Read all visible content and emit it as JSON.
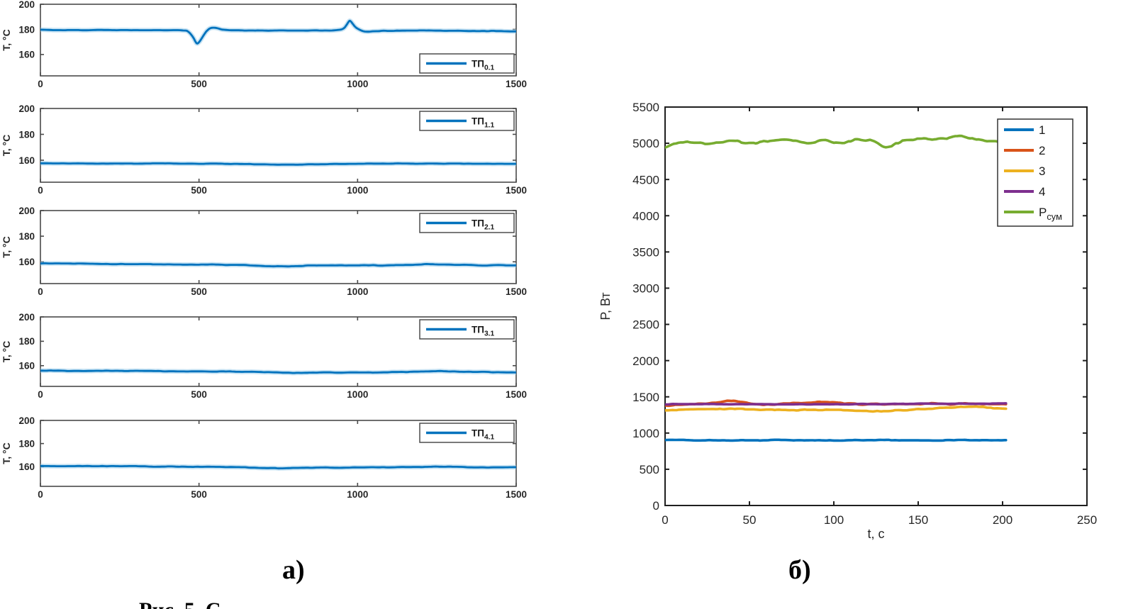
{
  "page": {
    "background": "#ffffff"
  },
  "captions": {
    "a": "а)",
    "b": "б)",
    "figure_fragment": "Рис. 5. С"
  },
  "colors": {
    "series_blue": "#0072BD",
    "series_orange": "#D95319",
    "series_yellow": "#EDB120",
    "series_purple": "#7E2F8E",
    "series_green": "#77AC30",
    "halo_blue": "#8EC6E8",
    "axis_left": "#4a4a4a",
    "axis_right": "#1f1f1f",
    "tick_label": "#262626"
  },
  "chart_data": [
    {
      "id": "a1",
      "panel": "a",
      "type": "line",
      "title": "",
      "xlabel": "",
      "ylabel": "T, °C",
      "xlim": [
        0,
        1500
      ],
      "ylim": [
        143,
        200
      ],
      "xticks": [
        0,
        500,
        1000,
        1500
      ],
      "yticks": [
        160,
        180,
        200
      ],
      "grid": false,
      "noise_wavelength": 45,
      "legend": {
        "position": "bottom-right",
        "entries": [
          {
            "label": "ТП",
            "sub": "0.1",
            "color": "#0072BD"
          }
        ]
      },
      "series": [
        {
          "name": "TP0.1",
          "color": "#0072BD",
          "halo": "#8EC6E8",
          "noise": 0.3,
          "points": [
            [
              0,
              179.6
            ],
            [
              100,
              179.5
            ],
            [
              200,
              179.4
            ],
            [
              300,
              179.4
            ],
            [
              400,
              179.4
            ],
            [
              450,
              179.3
            ],
            [
              465,
              178.5
            ],
            [
              480,
              174.5
            ],
            [
              492,
              169.2
            ],
            [
              500,
              170.0
            ],
            [
              510,
              173.5
            ],
            [
              522,
              178.0
            ],
            [
              535,
              180.8
            ],
            [
              548,
              181.2
            ],
            [
              562,
              180.6
            ],
            [
              580,
              179.6
            ],
            [
              620,
              179.1
            ],
            [
              700,
              179.0
            ],
            [
              800,
              179.0
            ],
            [
              900,
              179.1
            ],
            [
              935,
              179.3
            ],
            [
              955,
              180.5
            ],
            [
              968,
              184.5
            ],
            [
              975,
              186.7
            ],
            [
              983,
              185.0
            ],
            [
              995,
              181.5
            ],
            [
              1010,
              179.3
            ],
            [
              1030,
              178.4
            ],
            [
              1060,
              178.6
            ],
            [
              1150,
              179.0
            ],
            [
              1300,
              178.9
            ],
            [
              1400,
              178.7
            ],
            [
              1500,
              178.6
            ]
          ]
        }
      ]
    },
    {
      "id": "a2",
      "panel": "a",
      "type": "line",
      "title": "",
      "xlabel": "",
      "ylabel": "T, °C",
      "xlim": [
        0,
        1500
      ],
      "ylim": [
        143,
        200
      ],
      "xticks": [
        0,
        500,
        1000,
        1500
      ],
      "yticks": [
        160,
        180,
        200
      ],
      "grid": false,
      "noise_wavelength": 45,
      "legend": {
        "position": "top-right",
        "entries": [
          {
            "label": "ТП",
            "sub": "1.1",
            "color": "#0072BD"
          }
        ]
      },
      "series": [
        {
          "name": "TP1.1",
          "color": "#0072BD",
          "halo": "#8EC6E8",
          "noise": 0.25,
          "points": [
            [
              0,
              157.6
            ],
            [
              200,
              157.5
            ],
            [
              400,
              157.4
            ],
            [
              600,
              157.3
            ],
            [
              680,
              156.9
            ],
            [
              760,
              156.5
            ],
            [
              840,
              156.8
            ],
            [
              950,
              157.1
            ],
            [
              1100,
              157.3
            ],
            [
              1250,
              157.5
            ],
            [
              1400,
              157.3
            ],
            [
              1500,
              157.2
            ]
          ]
        }
      ]
    },
    {
      "id": "a3",
      "panel": "a",
      "type": "line",
      "title": "",
      "xlabel": "",
      "ylabel": "T, °C",
      "xlim": [
        0,
        1500
      ],
      "ylim": [
        143,
        200
      ],
      "xticks": [
        0,
        500,
        1000,
        1500
      ],
      "yticks": [
        160,
        180,
        200
      ],
      "grid": false,
      "noise_wavelength": 45,
      "legend": {
        "position": "top-right",
        "entries": [
          {
            "label": "ТП",
            "sub": "2.1",
            "color": "#0072BD"
          }
        ]
      },
      "series": [
        {
          "name": "TP2.1",
          "color": "#0072BD",
          "halo": "#8EC6E8",
          "noise": 0.3,
          "points": [
            [
              0,
              158.7
            ],
            [
              200,
              158.4
            ],
            [
              400,
              158.1
            ],
            [
              600,
              157.7
            ],
            [
              700,
              156.9
            ],
            [
              780,
              156.5
            ],
            [
              860,
              157.0
            ],
            [
              1000,
              157.1
            ],
            [
              1150,
              157.6
            ],
            [
              1230,
              158.2
            ],
            [
              1310,
              157.7
            ],
            [
              1420,
              157.2
            ],
            [
              1500,
              157.3
            ]
          ]
        }
      ]
    },
    {
      "id": "a4",
      "panel": "a",
      "type": "line",
      "title": "",
      "xlabel": "",
      "ylabel": "T, °C",
      "xlim": [
        0,
        1500
      ],
      "ylim": [
        143,
        200
      ],
      "xticks": [
        0,
        500,
        1000,
        1500
      ],
      "yticks": [
        160,
        180,
        200
      ],
      "grid": false,
      "noise_wavelength": 45,
      "legend": {
        "position": "top-right",
        "entries": [
          {
            "label": "ТП",
            "sub": "3.1",
            "color": "#0072BD"
          }
        ]
      },
      "series": [
        {
          "name": "TP3.1",
          "color": "#0072BD",
          "halo": "#8EC6E8",
          "noise": 0.3,
          "points": [
            [
              0,
              155.8
            ],
            [
              250,
              155.6
            ],
            [
              500,
              155.3
            ],
            [
              650,
              155.0
            ],
            [
              750,
              154.2
            ],
            [
              830,
              154.1
            ],
            [
              950,
              154.4
            ],
            [
              1100,
              154.6
            ],
            [
              1200,
              155.3
            ],
            [
              1260,
              155.6
            ],
            [
              1350,
              155.1
            ],
            [
              1450,
              154.6
            ],
            [
              1500,
              154.5
            ]
          ]
        }
      ]
    },
    {
      "id": "a5",
      "panel": "a",
      "type": "line",
      "title": "",
      "xlabel": "",
      "ylabel": "T, °C",
      "xlim": [
        0,
        1500
      ],
      "ylim": [
        143,
        200
      ],
      "xticks": [
        0,
        500,
        1000,
        1500
      ],
      "yticks": [
        160,
        180,
        200
      ],
      "grid": false,
      "noise_wavelength": 45,
      "legend": {
        "position": "top-right",
        "entries": [
          {
            "label": "ТП",
            "sub": "4.1",
            "color": "#0072BD"
          }
        ]
      },
      "series": [
        {
          "name": "TP4.1",
          "color": "#0072BD",
          "halo": "#8EC6E8",
          "noise": 0.3,
          "points": [
            [
              0,
              160.6
            ],
            [
              250,
              160.4
            ],
            [
              450,
              160.1
            ],
            [
              600,
              159.8
            ],
            [
              680,
              159.0
            ],
            [
              740,
              158.7
            ],
            [
              820,
              158.9
            ],
            [
              950,
              159.3
            ],
            [
              1100,
              159.4
            ],
            [
              1180,
              159.8
            ],
            [
              1240,
              160.0
            ],
            [
              1320,
              159.7
            ],
            [
              1420,
              159.5
            ],
            [
              1500,
              159.7
            ]
          ]
        }
      ]
    },
    {
      "id": "b",
      "panel": "b",
      "type": "line",
      "title": "",
      "xlabel": "t, c",
      "ylabel": "P, Вт",
      "xlim": [
        0,
        250
      ],
      "ylim": [
        0,
        5500
      ],
      "xticks": [
        0,
        50,
        100,
        150,
        200,
        250
      ],
      "yticks": [
        0,
        500,
        1000,
        1500,
        2000,
        2500,
        3000,
        3500,
        4000,
        4500,
        5000,
        5500
      ],
      "grid": false,
      "noise_wavelength": 6.5,
      "legend": {
        "position": "top-right",
        "entries": [
          {
            "label": "1",
            "color": "#0072BD"
          },
          {
            "label": "2",
            "color": "#D95319"
          },
          {
            "label": "3",
            "color": "#EDB120"
          },
          {
            "label": "4",
            "color": "#7E2F8E"
          },
          {
            "label": "P",
            "sub": "сум",
            "color": "#77AC30"
          }
        ]
      },
      "series": [
        {
          "name": "1",
          "color": "#0072BD",
          "noise": 6,
          "points": [
            [
              0,
              905
            ],
            [
              25,
              900
            ],
            [
              50,
              897
            ],
            [
              75,
              903
            ],
            [
              100,
              900
            ],
            [
              125,
              902
            ],
            [
              150,
              898
            ],
            [
              175,
              903
            ],
            [
              202,
              897
            ]
          ]
        },
        {
          "name": "2",
          "color": "#D95319",
          "noise": 11,
          "points": [
            [
              0,
              1385
            ],
            [
              20,
              1400
            ],
            [
              38,
              1438
            ],
            [
              55,
              1400
            ],
            [
              75,
              1405
            ],
            [
              95,
              1425
            ],
            [
              110,
              1400
            ],
            [
              130,
              1398
            ],
            [
              150,
              1405
            ],
            [
              170,
              1402
            ],
            [
              185,
              1400
            ],
            [
              202,
              1393
            ]
          ]
        },
        {
          "name": "3",
          "color": "#EDB120",
          "noise": 9,
          "points": [
            [
              0,
              1315
            ],
            [
              25,
              1335
            ],
            [
              50,
              1325
            ],
            [
              75,
              1320
            ],
            [
              100,
              1322
            ],
            [
              115,
              1303
            ],
            [
              135,
              1310
            ],
            [
              160,
              1345
            ],
            [
              180,
              1360
            ],
            [
              195,
              1345
            ],
            [
              202,
              1338
            ]
          ]
        },
        {
          "name": "4",
          "color": "#7E2F8E",
          "noise": 4,
          "points": [
            [
              0,
              1398
            ],
            [
              50,
              1400
            ],
            [
              100,
              1397
            ],
            [
              150,
              1403
            ],
            [
              202,
              1408
            ]
          ]
        },
        {
          "name": "Pсум",
          "color": "#77AC30",
          "noise": 22,
          "points": [
            [
              0,
              4950
            ],
            [
              12,
              5010
            ],
            [
              25,
              4995
            ],
            [
              38,
              5040
            ],
            [
              50,
              4990
            ],
            [
              62,
              5035
            ],
            [
              72,
              5060
            ],
            [
              85,
              5010
            ],
            [
              95,
              5045
            ],
            [
              105,
              5000
            ],
            [
              115,
              5055
            ],
            [
              125,
              5010
            ],
            [
              132,
              4955
            ],
            [
              142,
              5030
            ],
            [
              152,
              5065
            ],
            [
              162,
              5055
            ],
            [
              172,
              5095
            ],
            [
              182,
              5075
            ],
            [
              192,
              5030
            ],
            [
              202,
              4985
            ]
          ]
        }
      ]
    }
  ]
}
